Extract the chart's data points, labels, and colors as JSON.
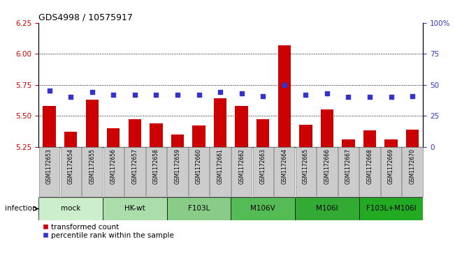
{
  "title": "GDS4998 / 10575917",
  "samples": [
    "GSM1172653",
    "GSM1172654",
    "GSM1172655",
    "GSM1172656",
    "GSM1172657",
    "GSM1172658",
    "GSM1172659",
    "GSM1172660",
    "GSM1172661",
    "GSM1172662",
    "GSM1172663",
    "GSM1172664",
    "GSM1172665",
    "GSM1172666",
    "GSM1172667",
    "GSM1172668",
    "GSM1172669",
    "GSM1172670"
  ],
  "bar_values": [
    5.58,
    5.37,
    5.63,
    5.4,
    5.47,
    5.44,
    5.35,
    5.42,
    5.64,
    5.58,
    5.47,
    6.07,
    5.43,
    5.55,
    5.31,
    5.38,
    5.31,
    5.39
  ],
  "dot_values": [
    45,
    40,
    44,
    42,
    42,
    42,
    42,
    42,
    44,
    43,
    41,
    50,
    42,
    43,
    40,
    40,
    40,
    41
  ],
  "ylim_left": [
    5.25,
    6.25
  ],
  "ylim_right": [
    0,
    100
  ],
  "yticks_left": [
    5.25,
    5.5,
    5.75,
    6.0,
    6.25
  ],
  "yticks_right": [
    0,
    25,
    50,
    75,
    100
  ],
  "bar_color": "#cc0000",
  "dot_color": "#3333cc",
  "groups": [
    {
      "label": "mock",
      "start": 0,
      "end": 2,
      "color": "#cceecc"
    },
    {
      "label": "HK-wt",
      "start": 3,
      "end": 5,
      "color": "#aaddaa"
    },
    {
      "label": "F103L",
      "start": 6,
      "end": 8,
      "color": "#88cc88"
    },
    {
      "label": "M106V",
      "start": 9,
      "end": 11,
      "color": "#55bb55"
    },
    {
      "label": "M106I",
      "start": 12,
      "end": 14,
      "color": "#33aa33"
    },
    {
      "label": "F103L+M106I",
      "start": 15,
      "end": 17,
      "color": "#22aa22"
    }
  ],
  "infection_label": "infection",
  "legend_bar_label": "transformed count",
  "legend_dot_label": "percentile rank within the sample",
  "grid_values": [
    5.5,
    5.75,
    6.0
  ],
  "tick_label_color_left": "#cc0000",
  "tick_label_color_right": "#3333cc",
  "sample_box_color": "#cccccc",
  "sample_box_border": "#888888"
}
